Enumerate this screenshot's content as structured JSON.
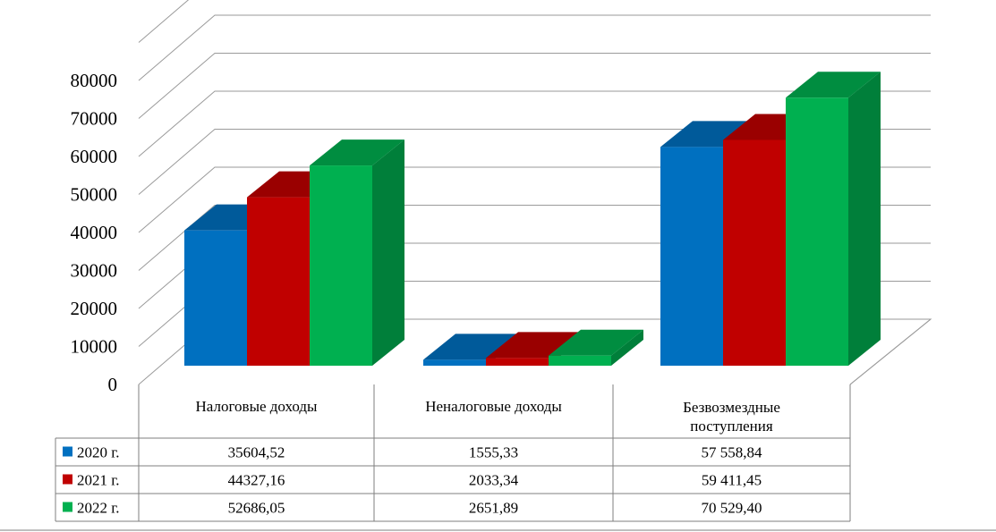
{
  "chart_data": {
    "type": "bar",
    "categories": [
      "Налоговые доходы",
      "Неналоговые доходы",
      "Безвозмездные поступления"
    ],
    "series": [
      {
        "name": "2020 г.",
        "values": [
          35604.52,
          1555.33,
          57558.84
        ],
        "labels": [
          "35604,52",
          "1555,33",
          "57 558,84"
        ],
        "color": "#0070C0"
      },
      {
        "name": "2021 г.",
        "values": [
          44327.16,
          2033.34,
          59411.45
        ],
        "labels": [
          "44327,16",
          "2033,34",
          "59 411,45"
        ],
        "color": "#C00000"
      },
      {
        "name": "2022 г.",
        "values": [
          52686.05,
          2651.89,
          70529.4
        ],
        "labels": [
          "52686,05",
          "2651,89",
          "70 529,40"
        ],
        "color": "#00B050"
      }
    ],
    "yticks": [
      "0",
      "10000",
      "20000",
      "30000",
      "40000",
      "50000",
      "60000",
      "70000",
      "80000"
    ],
    "ylim": [
      0,
      80000
    ],
    "grid": true,
    "legend": "data-table",
    "title": "",
    "xlabel": "",
    "ylabel": ""
  }
}
